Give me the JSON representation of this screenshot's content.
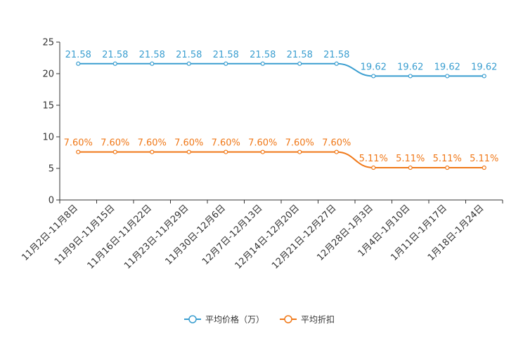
{
  "chart_data": {
    "type": "line",
    "categories": [
      "11月2日-11月8日",
      "11月9日-11月15日",
      "11月16日-11月22日",
      "11月23日-11月29日",
      "11月30日-12月6日",
      "12月7日-12月13日",
      "12月14日-12月20日",
      "12月21日-12月27日",
      "12月28日-1月3日",
      "1月4日-1月10日",
      "1月11日-1月17日",
      "1月18日-1月24日"
    ],
    "series": [
      {
        "name": "平均价格（万）",
        "color": "#3a9ed0",
        "values": [
          21.58,
          21.58,
          21.58,
          21.58,
          21.58,
          21.58,
          21.58,
          21.58,
          19.62,
          19.62,
          19.62,
          19.62
        ],
        "labels": [
          "21.58",
          "21.58",
          "21.58",
          "21.58",
          "21.58",
          "21.58",
          "21.58",
          "21.58",
          "19.62",
          "19.62",
          "19.62",
          "19.62"
        ]
      },
      {
        "name": "平均折扣",
        "color": "#f07818",
        "values": [
          7.6,
          7.6,
          7.6,
          7.6,
          7.6,
          7.6,
          7.6,
          7.6,
          5.11,
          5.11,
          5.11,
          5.11
        ],
        "labels": [
          "7.60%",
          "7.60%",
          "7.60%",
          "7.60%",
          "7.60%",
          "7.60%",
          "7.60%",
          "7.60%",
          "5.11%",
          "5.11%",
          "5.11%",
          "5.11%"
        ]
      }
    ],
    "ylim": [
      0,
      25
    ],
    "yticks": [
      "0",
      "5",
      "10",
      "15",
      "20",
      "25"
    ],
    "yticks_values": [
      0,
      5,
      10,
      15,
      20,
      25
    ],
    "title": "",
    "xlabel": "",
    "ylabel": "",
    "grid": false,
    "legend_position": "bottom-center"
  }
}
